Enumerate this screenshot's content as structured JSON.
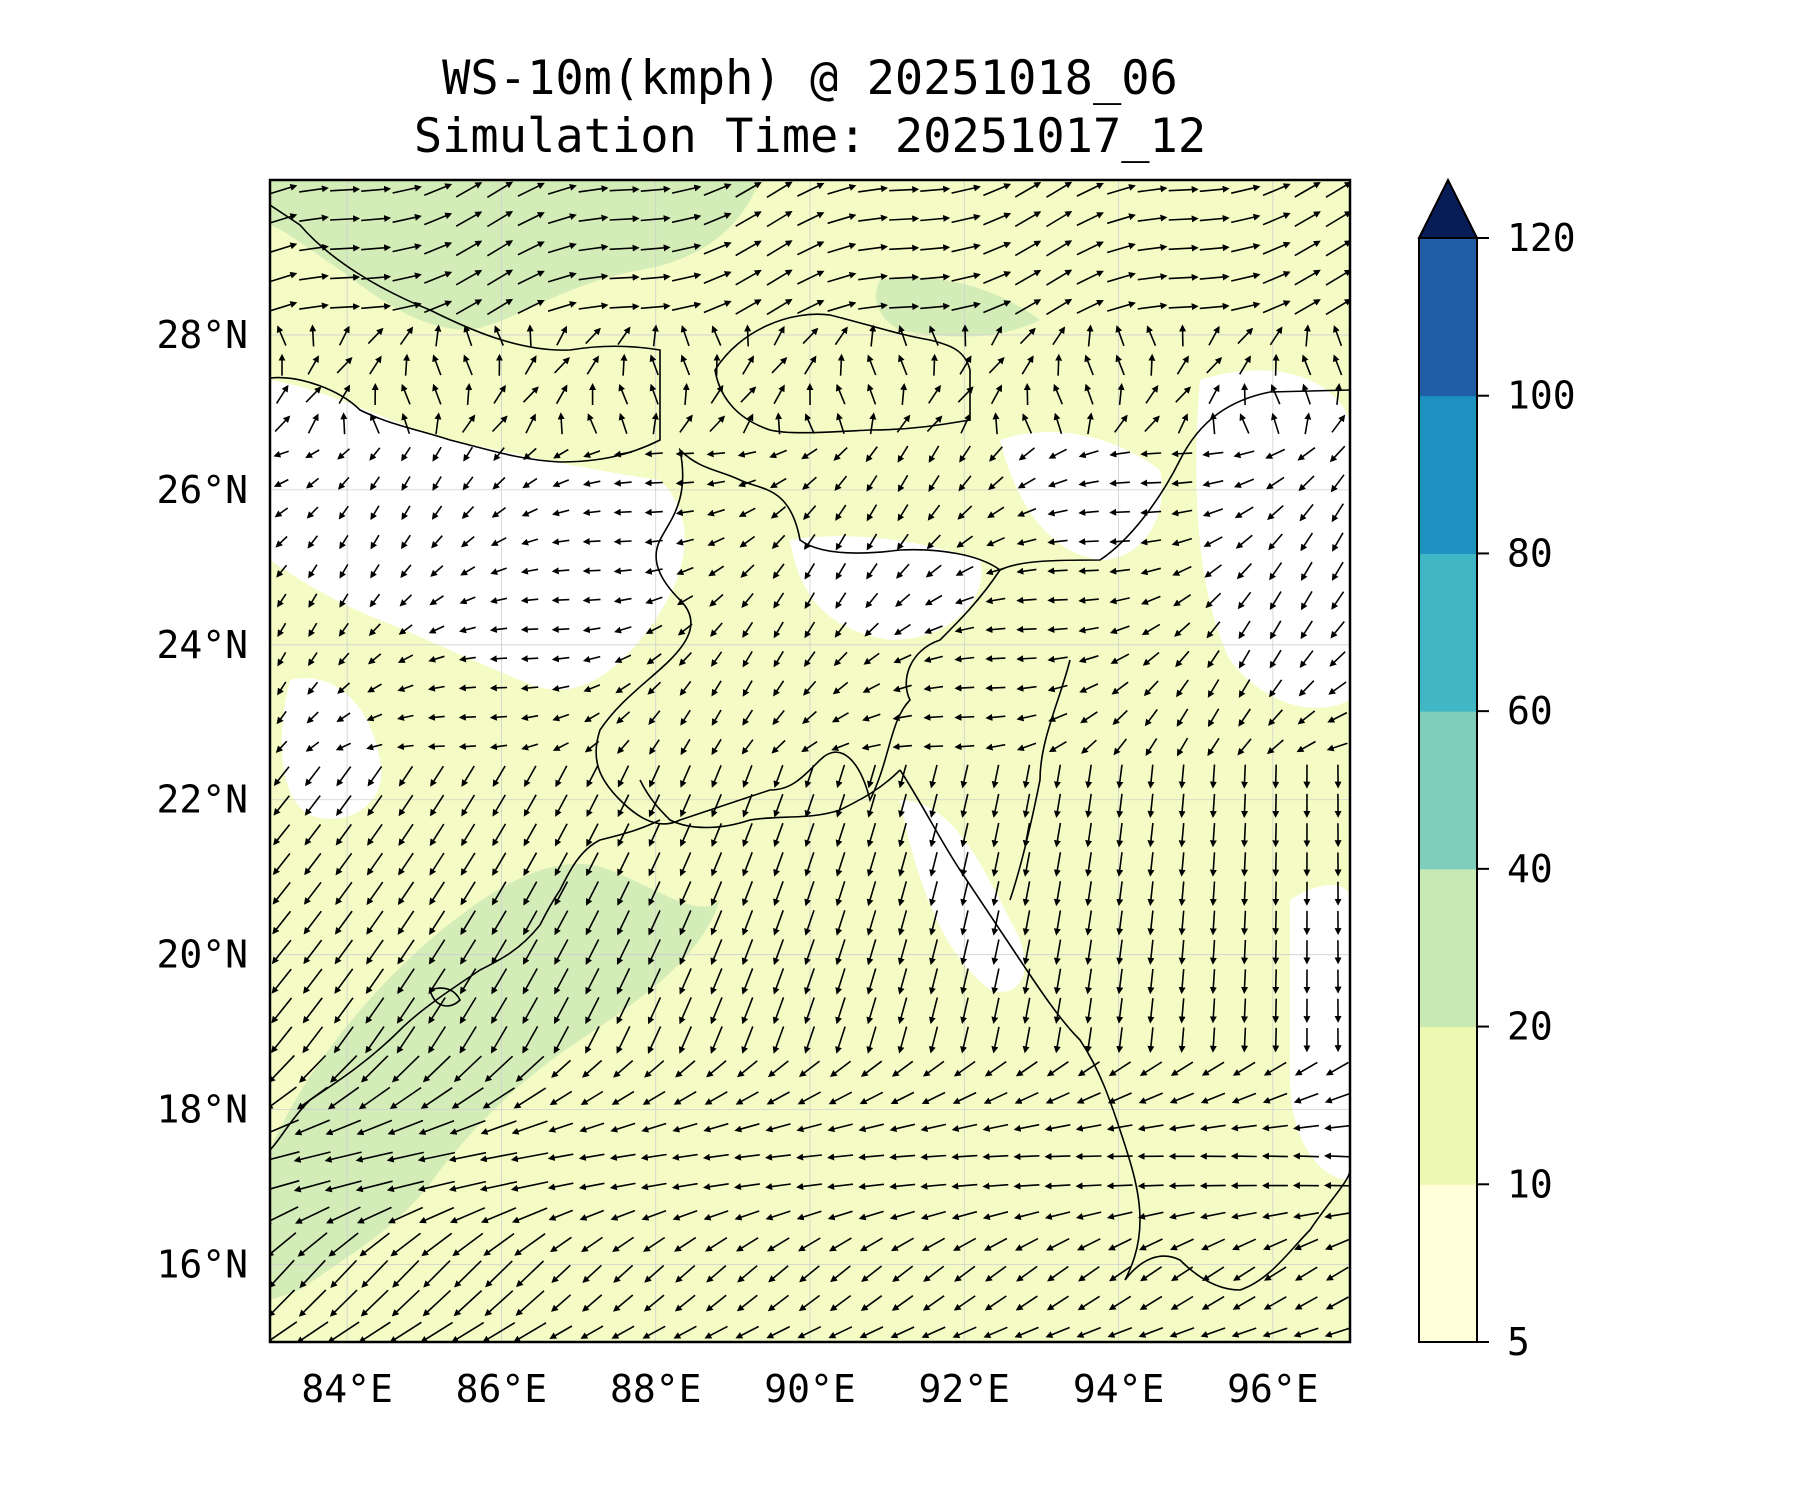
{
  "title": "WS-10m(kmph) @ 20251018_06",
  "subtitle": "Simulation Time: 20251017_12",
  "map": {
    "lon_range": [
      83,
      97
    ],
    "lat_range": [
      15,
      30
    ],
    "lon_ticks": [
      {
        "value": 84,
        "label": "84°E"
      },
      {
        "value": 86,
        "label": "86°E"
      },
      {
        "value": 88,
        "label": "88°E"
      },
      {
        "value": 90,
        "label": "90°E"
      },
      {
        "value": 92,
        "label": "92°E"
      },
      {
        "value": 94,
        "label": "94°E"
      },
      {
        "value": 96,
        "label": "96°E"
      }
    ],
    "lat_ticks": [
      {
        "value": 16,
        "label": "16°N"
      },
      {
        "value": 18,
        "label": "18°N"
      },
      {
        "value": 20,
        "label": "20°N"
      },
      {
        "value": 22,
        "label": "22°N"
      },
      {
        "value": 24,
        "label": "24°N"
      },
      {
        "value": 26,
        "label": "26°N"
      },
      {
        "value": 28,
        "label": "28°N"
      }
    ],
    "gridlines": true
  },
  "colorbar": {
    "levels": [
      {
        "value": 5,
        "label": "5"
      },
      {
        "value": 10,
        "label": "10"
      },
      {
        "value": 20,
        "label": "20"
      },
      {
        "value": 40,
        "label": "40"
      },
      {
        "value": 60,
        "label": "60"
      },
      {
        "value": 80,
        "label": "80"
      },
      {
        "value": 100,
        "label": "100"
      },
      {
        "value": 120,
        "label": "120"
      }
    ],
    "colors": [
      "#ffffd9",
      "#edf8b1",
      "#c7e9b4",
      "#7fcdbb",
      "#41b6c4",
      "#1d91c0",
      "#225ea8",
      "#0c2c84"
    ],
    "extend": "max",
    "extend_color": "#081d58"
  }
}
